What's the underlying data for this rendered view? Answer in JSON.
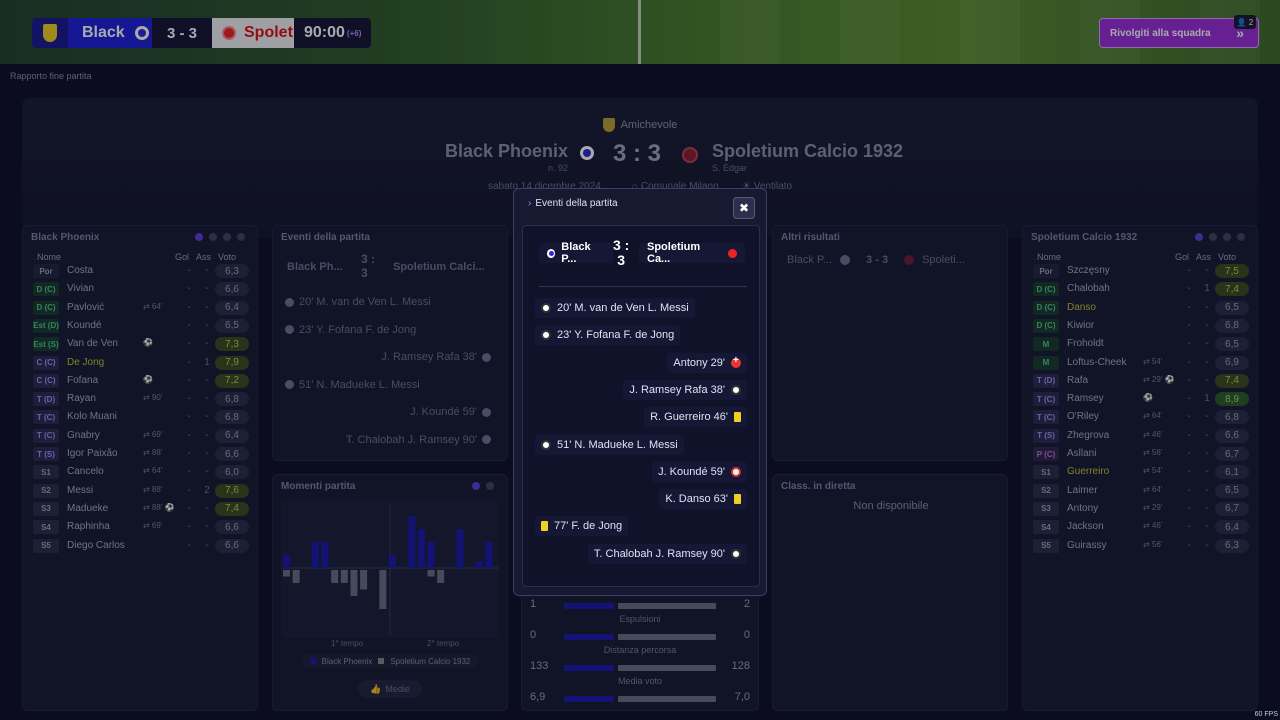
{
  "scoreboard": {
    "home": "Black",
    "score": "3 - 3",
    "away": "Spolet",
    "time": "90:00",
    "added": "(+6)"
  },
  "talk_button": {
    "label": "Rivolgiti alla squadra",
    "badge": "2"
  },
  "breadcrumb": "Rapporto fine partita",
  "hero": {
    "competition": "Amichevole",
    "home": "Black Phoenix",
    "home_sub": "n. 92",
    "score": "3 : 3",
    "away": "Spoletium Calcio 1932",
    "away_sub": "S. Edgar",
    "date": "sabato 14 dicembre 2024",
    "stadium": "Comunale Milano",
    "weather": "Ventilato"
  },
  "home_panel": {
    "title": "Black Phoenix",
    "headers": {
      "name": "Nome",
      "goals": "Gol",
      "assists": "Ass",
      "rating": "Voto"
    },
    "players": [
      {
        "pos": "Por",
        "cls": "por",
        "name": "Costa",
        "ev": "",
        "g": "-",
        "a": "-",
        "v": "6,3"
      },
      {
        "pos": "D (C)",
        "cls": "d",
        "name": "Vivian",
        "ev": "",
        "g": "-",
        "a": "-",
        "v": "6,6"
      },
      {
        "pos": "D (C)",
        "cls": "d",
        "name": "Pavlović",
        "ev": "⇄ 64'",
        "g": "-",
        "a": "-",
        "v": "6,4"
      },
      {
        "pos": "Est (D)",
        "cls": "d",
        "name": "Koundé",
        "ev": "",
        "g": "-",
        "a": "-",
        "v": "6,5"
      },
      {
        "pos": "Est (S)",
        "cls": "d",
        "name": "Van de Ven",
        "ev": "⚽",
        "g": "-",
        "a": "-",
        "v": "7,3",
        "vc": "good"
      },
      {
        "pos": "C (C)",
        "cls": "c",
        "name": "De Jong",
        "ev": "",
        "g": "-",
        "a": "1",
        "v": "7,9",
        "vc": "good",
        "hl": true
      },
      {
        "pos": "C (C)",
        "cls": "c",
        "name": "Fofana",
        "ev": "⚽",
        "g": "-",
        "a": "-",
        "v": "7,2",
        "vc": "good"
      },
      {
        "pos": "T (D)",
        "cls": "t",
        "name": "Rayan",
        "ev": "⇄ 90'",
        "g": "-",
        "a": "-",
        "v": "6,8"
      },
      {
        "pos": "T (C)",
        "cls": "t",
        "name": "Kolo Muani",
        "ev": "",
        "g": "-",
        "a": "-",
        "v": "6,8"
      },
      {
        "pos": "T (C)",
        "cls": "t",
        "name": "Gnabry",
        "ev": "⇄ 69'",
        "g": "-",
        "a": "-",
        "v": "6,4"
      },
      {
        "pos": "T (S)",
        "cls": "t",
        "name": "Igor Paixão",
        "ev": "⇄ 88'",
        "g": "-",
        "a": "-",
        "v": "6,6"
      },
      {
        "pos": "S1",
        "cls": "s",
        "name": "Cancelo",
        "ev": "⇄ 64'",
        "g": "-",
        "a": "-",
        "v": "6,0"
      },
      {
        "pos": "S2",
        "cls": "s",
        "name": "Messi",
        "ev": "⇄ 88'",
        "g": "-",
        "a": "2",
        "v": "7,6",
        "vc": "good"
      },
      {
        "pos": "S3",
        "cls": "s",
        "name": "Madueke",
        "ev": "⇄ 88' ⚽",
        "g": "-",
        "a": "-",
        "v": "7,4",
        "vc": "good"
      },
      {
        "pos": "S4",
        "cls": "s",
        "name": "Raphinha",
        "ev": "⇄ 69'",
        "g": "-",
        "a": "-",
        "v": "6,6"
      },
      {
        "pos": "S5",
        "cls": "s",
        "name": "Diego Carlos",
        "ev": "",
        "g": "-",
        "a": "-",
        "v": "6,6"
      }
    ]
  },
  "away_panel": {
    "title": "Spoletium Calcio 1932",
    "headers": {
      "name": "Nome",
      "goals": "Gol",
      "assists": "Ass",
      "rating": "Voto"
    },
    "players": [
      {
        "pos": "Por",
        "cls": "por",
        "name": "Szczęsny",
        "ev": "",
        "g": "-",
        "a": "-",
        "v": "7,5",
        "vc": "good"
      },
      {
        "pos": "D (C)",
        "cls": "d",
        "name": "Chalobah",
        "ev": "",
        "g": "-",
        "a": "1",
        "v": "7,4",
        "vc": "good"
      },
      {
        "pos": "D (C)",
        "cls": "d",
        "name": "Danso",
        "ev": "",
        "g": "-",
        "a": "-",
        "v": "6,5",
        "hl": true
      },
      {
        "pos": "D (C)",
        "cls": "d",
        "name": "Kiwior",
        "ev": "",
        "g": "-",
        "a": "-",
        "v": "6,8"
      },
      {
        "pos": "M",
        "cls": "m",
        "name": "Froholdt",
        "ev": "",
        "g": "-",
        "a": "-",
        "v": "6,5"
      },
      {
        "pos": "M",
        "cls": "m",
        "name": "Loftus-Cheek",
        "ev": "⇄ 54'",
        "g": "-",
        "a": "-",
        "v": "6,9"
      },
      {
        "pos": "T (D)",
        "cls": "t",
        "name": "Rafa",
        "ev": "⇄ 29' ⚽",
        "g": "-",
        "a": "-",
        "v": "7,4",
        "vc": "good"
      },
      {
        "pos": "T (C)",
        "cls": "t",
        "name": "Ramsey",
        "ev": "⚽",
        "g": "-",
        "a": "1",
        "v": "8,9",
        "vc": "great"
      },
      {
        "pos": "T (C)",
        "cls": "t",
        "name": "O'Riley",
        "ev": "⇄ 64'",
        "g": "-",
        "a": "-",
        "v": "6,8"
      },
      {
        "pos": "T (S)",
        "cls": "t",
        "name": "Zhegrova",
        "ev": "⇄ 46'",
        "g": "-",
        "a": "-",
        "v": "6,6"
      },
      {
        "pos": "P (C)",
        "cls": "p",
        "name": "Asllani",
        "ev": "⇄ 56'",
        "g": "-",
        "a": "-",
        "v": "6,7"
      },
      {
        "pos": "S1",
        "cls": "s",
        "name": "Guerreiro",
        "ev": "⇄ 54'",
        "g": "-",
        "a": "-",
        "v": "6,1",
        "hl": true
      },
      {
        "pos": "S2",
        "cls": "s",
        "name": "Laimer",
        "ev": "⇄ 64'",
        "g": "-",
        "a": "-",
        "v": "6,5"
      },
      {
        "pos": "S3",
        "cls": "s",
        "name": "Antony",
        "ev": "⇄ 29'",
        "g": "-",
        "a": "-",
        "v": "6,7"
      },
      {
        "pos": "S4",
        "cls": "s",
        "name": "Jackson",
        "ev": "⇄ 46'",
        "g": "-",
        "a": "-",
        "v": "6,4"
      },
      {
        "pos": "S5",
        "cls": "s",
        "name": "Guirassy",
        "ev": "⇄ 56'",
        "g": "-",
        "a": "-",
        "v": "6,3"
      }
    ]
  },
  "events_panel": {
    "title": "Eventi della partita",
    "home": "Black Ph...",
    "score": "3 :\n3",
    "away": "Spoletium Calci...",
    "items": [
      {
        "side": "l",
        "text": "20' M. van de Ven L. Messi"
      },
      {
        "side": "l",
        "text": "23' Y. Fofana F. de Jong"
      },
      {
        "side": "r",
        "text": "J. Ramsey Rafa 38'"
      },
      {
        "side": "l",
        "text": "51' N. Madueke L. Messi"
      },
      {
        "side": "r",
        "text": "J. Koundé 59'"
      },
      {
        "side": "r",
        "text": "T. Chalobah J. Ramsey 90'"
      }
    ]
  },
  "other_results": {
    "title": "Altri risultati",
    "home": "Black P...",
    "score": "3 - 3",
    "away": "Spoleti..."
  },
  "live_table": {
    "title": "Class. in diretta",
    "text": "Non disponibile"
  },
  "moments": {
    "title": "Momenti partita",
    "first_half": "1° tempo",
    "second_half": "2° tempo",
    "legend_home": "Black Phoenix",
    "legend_away": "Spoletium Calcio 1932",
    "media_button": "Medie"
  },
  "chart_data": {
    "type": "bar",
    "series": [
      {
        "name": "Black Phoenix",
        "values": [
          2,
          0,
          0,
          4,
          4,
          0,
          0,
          0,
          0,
          0,
          0,
          2,
          0,
          8,
          6,
          4,
          0,
          0,
          6,
          0,
          1,
          4
        ]
      },
      {
        "name": "Spoletium Calcio 1932",
        "values": [
          1,
          2,
          0,
          0,
          0,
          2,
          2,
          4,
          3,
          0,
          6,
          0,
          0,
          0,
          0,
          1,
          2,
          0,
          0,
          0,
          0,
          0
        ]
      }
    ]
  },
  "stats": [
    {
      "label": "",
      "home": "1",
      "away": "2",
      "hp": 0.33
    },
    {
      "label": "Espulsioni",
      "home": "0",
      "away": "0",
      "hp": 0.33
    },
    {
      "label": "Distanza percorsa",
      "home": "133",
      "away": "128",
      "hp": 0.33
    },
    {
      "label": "Media voto",
      "home": "6,9",
      "away": "7,0",
      "hp": 0.33
    }
  ],
  "modal": {
    "title": "Eventi della partita",
    "close": "✖",
    "home": "Black P...",
    "score": "3 :\n3",
    "away": "Spoletium Ca...",
    "events": [
      {
        "side": "l",
        "icon": "ball",
        "text": "20' M. van de Ven L. Messi"
      },
      {
        "side": "l",
        "icon": "ball",
        "text": "23' Y. Fofana F. de Jong"
      },
      {
        "side": "r",
        "icon": "sub",
        "text": "Antony 29'"
      },
      {
        "side": "r",
        "icon": "ball",
        "text": "J. Ramsey Rafa 38'"
      },
      {
        "side": "r",
        "icon": "yellow",
        "text": "R. Guerreiro 46'"
      },
      {
        "side": "l",
        "icon": "ball",
        "text": "51' N. Madueke L. Messi"
      },
      {
        "side": "r",
        "icon": "ownball",
        "text": "J. Koundé 59'"
      },
      {
        "side": "r",
        "icon": "yellow",
        "text": "K. Danso 63'"
      },
      {
        "side": "l",
        "icon": "yellow",
        "text": "77' F. de Jong"
      },
      {
        "side": "r",
        "icon": "ball",
        "text": "T. Chalobah J. Ramsey 90'"
      }
    ]
  },
  "fps": "60 FPS"
}
